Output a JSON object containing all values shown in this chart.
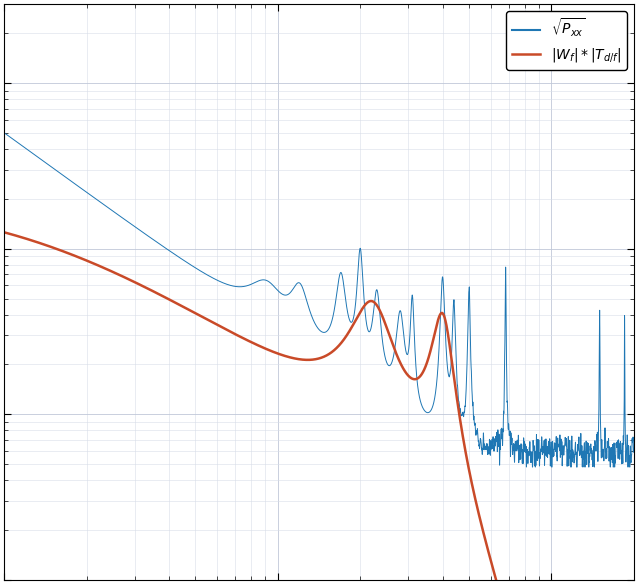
{
  "blue_color": "#1f77b4",
  "orange_color": "#c94a28",
  "background_color": "#ffffff",
  "grid_major_color": "#c0c8d8",
  "grid_minor_color": "#d8dde8",
  "fig_width": 6.38,
  "fig_height": 5.84,
  "dpi": 100,
  "xlim": [
    1,
    200
  ],
  "ylim_log": [
    -9,
    -5
  ],
  "legend_loc": "upper right"
}
